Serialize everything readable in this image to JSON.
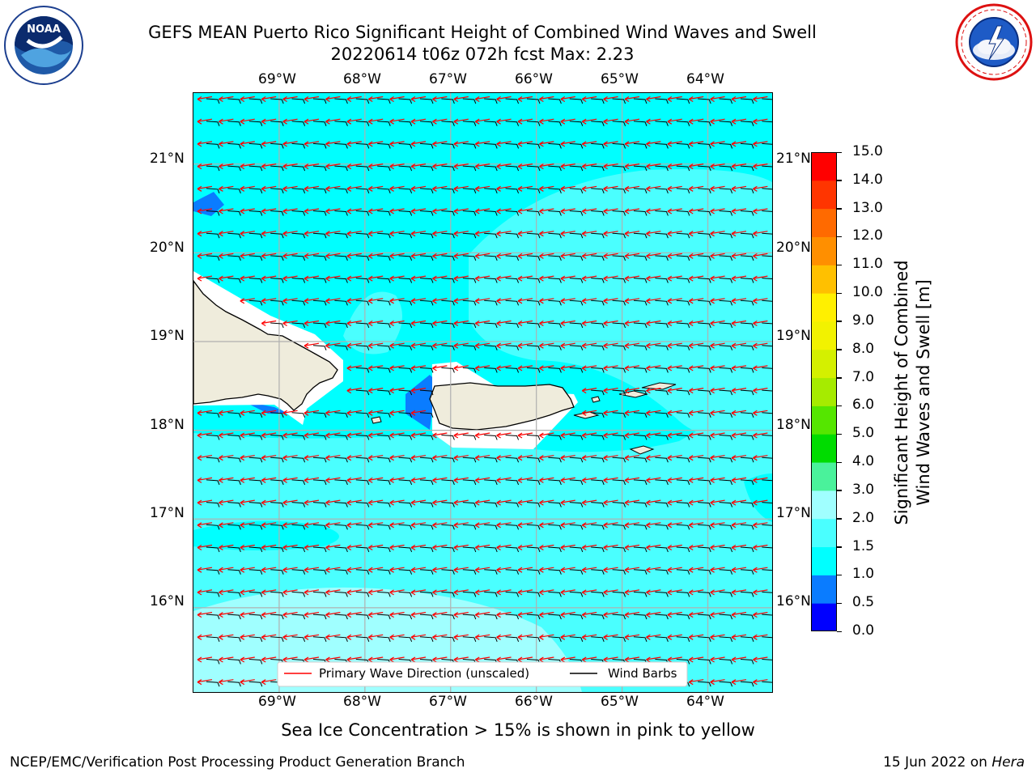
{
  "title": {
    "line1": "GEFS MEAN Puerto Rico Significant Height of Combined Wind Waves and Swell",
    "line2": "20220614 t06z 072h fcst   Max: 2.23"
  },
  "logos": {
    "left": {
      "icon": "noaa-logo-icon",
      "text": "NOAA",
      "arc_text": "NATIONAL OCEANIC AND ATMOSPHERIC ADMINISTRATION",
      "bottom_text": "U.S. DEPARTMENT OF COMMERCE"
    },
    "right": {
      "icon": "nws-logo-icon",
      "arc_text": "NATIONAL WEATHER SERVICE"
    }
  },
  "map": {
    "lon_labels": [
      "69°W",
      "68°W",
      "67°W",
      "66°W",
      "65°W",
      "64°W"
    ],
    "lat_labels": [
      "21°N",
      "20°N",
      "19°N",
      "18°N",
      "17°N",
      "16°N"
    ],
    "lon_range": [
      -70.0,
      -63.25
    ],
    "lat_range": [
      15.05,
      21.8
    ],
    "land_color": "#efecdc",
    "coast_color": "#000000",
    "grid_color": "#b0b0b0",
    "wave_arrow_color": "#ff0000",
    "barb_color": "#000000",
    "legend": {
      "primary_wave": "Primary Wave Direction (unscaled)",
      "wind_barbs": "Wind Barbs"
    }
  },
  "colorbar": {
    "label_line1": "Significant Height of Combined",
    "label_line2": "Wind Waves and Swell [m]",
    "levels": [
      "0.0",
      "0.5",
      "1.0",
      "1.5",
      "2.0",
      "3.0",
      "4.0",
      "5.0",
      "6.0",
      "7.0",
      "8.0",
      "9.0",
      "10.0",
      "11.0",
      "12.0",
      "13.0",
      "14.0",
      "15.0"
    ],
    "colors": [
      "#0000ff",
      "#0a7cff",
      "#00ffff",
      "#4affff",
      "#a0ffff",
      "#4af29b",
      "#00dc00",
      "#55e600",
      "#a6eb00",
      "#d4f000",
      "#f2f200",
      "#fff000",
      "#ffc000",
      "#ff8f00",
      "#ff6a00",
      "#ff3500",
      "#ff0000"
    ]
  },
  "subcaption": "Sea Ice Concentration > 15% is shown in pink to yellow",
  "footer": {
    "left": "NCEP/EMC/Verification Post Processing Product Generation Branch",
    "right_date": "15 Jun 2022 on",
    "right_host": "Hera"
  }
}
